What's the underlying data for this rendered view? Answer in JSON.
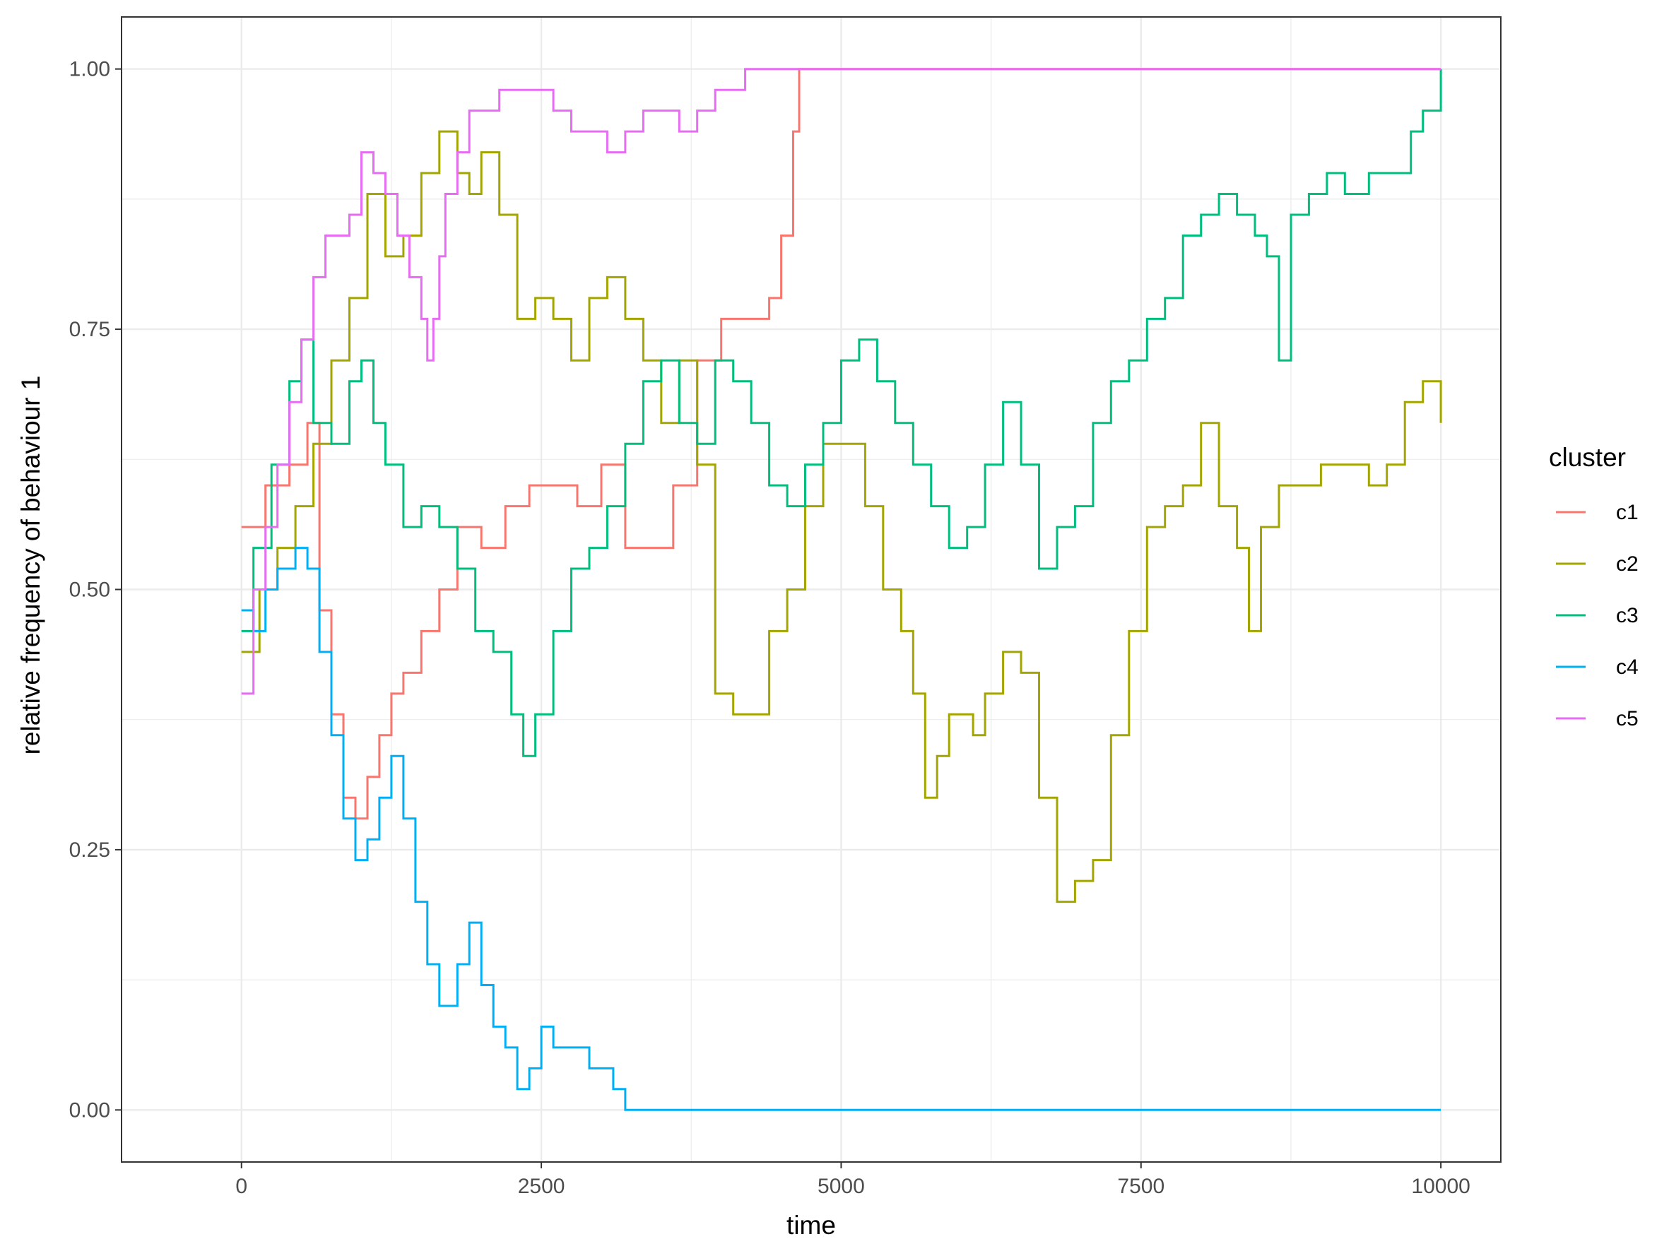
{
  "chart_data": {
    "type": "line",
    "title": "",
    "xlabel": "time",
    "ylabel": "relative frequency of behaviour 1",
    "xlim": [
      -1000,
      10500
    ],
    "ylim": [
      -0.05,
      1.05
    ],
    "xticks": [
      0,
      2500,
      5000,
      7500,
      10000
    ],
    "xtick_labels": [
      "0",
      "2500",
      "5000",
      "7500",
      "10000"
    ],
    "yticks": [
      0,
      0.25,
      0.5,
      0.75,
      1
    ],
    "ytick_labels": [
      "0.00",
      "0.25",
      "0.50",
      "0.75",
      "1.00"
    ],
    "grid": true,
    "legend": {
      "title": "cluster",
      "position": "right"
    },
    "series": [
      {
        "name": "c1",
        "color": "#F8766D",
        "x": [
          0,
          200,
          400,
          550,
          650,
          750,
          850,
          950,
          1050,
          1150,
          1250,
          1350,
          1500,
          1650,
          1800,
          2000,
          2200,
          2400,
          2600,
          2800,
          3000,
          3200,
          3400,
          3600,
          3800,
          4000,
          4200,
          4400,
          4500,
          4600,
          4650,
          4700,
          10000
        ],
        "y": [
          0.56,
          0.6,
          0.62,
          0.66,
          0.48,
          0.38,
          0.3,
          0.28,
          0.32,
          0.36,
          0.4,
          0.42,
          0.46,
          0.5,
          0.56,
          0.54,
          0.58,
          0.6,
          0.6,
          0.58,
          0.62,
          0.54,
          0.54,
          0.6,
          0.72,
          0.76,
          0.76,
          0.78,
          0.84,
          0.94,
          1.0,
          1.0,
          1.0
        ]
      },
      {
        "name": "c2",
        "color": "#A3A500",
        "x": [
          0,
          150,
          300,
          450,
          600,
          750,
          900,
          1050,
          1200,
          1350,
          1500,
          1650,
          1800,
          1900,
          2000,
          2150,
          2300,
          2450,
          2600,
          2750,
          2900,
          3050,
          3200,
          3350,
          3500,
          3650,
          3800,
          3950,
          4100,
          4250,
          4400,
          4550,
          4700,
          4850,
          5000,
          5200,
          5350,
          5500,
          5600,
          5700,
          5800,
          5900,
          6000,
          6100,
          6200,
          6350,
          6500,
          6650,
          6800,
          6950,
          7100,
          7250,
          7400,
          7550,
          7700,
          7850,
          8000,
          8150,
          8300,
          8400,
          8500,
          8650,
          8800,
          9000,
          9200,
          9400,
          9550,
          9700,
          9850,
          10000
        ],
        "y": [
          0.44,
          0.5,
          0.54,
          0.58,
          0.64,
          0.72,
          0.78,
          0.88,
          0.82,
          0.84,
          0.9,
          0.94,
          0.9,
          0.88,
          0.92,
          0.86,
          0.76,
          0.78,
          0.76,
          0.72,
          0.78,
          0.8,
          0.76,
          0.72,
          0.66,
          0.72,
          0.62,
          0.4,
          0.38,
          0.38,
          0.46,
          0.5,
          0.58,
          0.64,
          0.64,
          0.58,
          0.5,
          0.46,
          0.4,
          0.3,
          0.34,
          0.38,
          0.38,
          0.36,
          0.4,
          0.44,
          0.42,
          0.3,
          0.2,
          0.22,
          0.24,
          0.36,
          0.46,
          0.56,
          0.58,
          0.6,
          0.66,
          0.58,
          0.54,
          0.46,
          0.56,
          0.6,
          0.6,
          0.62,
          0.62,
          0.6,
          0.62,
          0.68,
          0.7,
          0.66
        ]
      },
      {
        "name": "c3",
        "color": "#00BF7D",
        "x": [
          0,
          100,
          250,
          400,
          500,
          600,
          750,
          900,
          1000,
          1100,
          1200,
          1350,
          1500,
          1650,
          1800,
          1950,
          2100,
          2250,
          2350,
          2450,
          2600,
          2750,
          2900,
          3050,
          3200,
          3350,
          3500,
          3650,
          3800,
          3950,
          4100,
          4250,
          4400,
          4550,
          4700,
          4850,
          5000,
          5150,
          5300,
          5450,
          5600,
          5750,
          5900,
          6050,
          6200,
          6350,
          6500,
          6650,
          6800,
          6950,
          7100,
          7250,
          7400,
          7550,
          7700,
          7850,
          8000,
          8150,
          8300,
          8450,
          8550,
          8650,
          8750,
          8900,
          9050,
          9200,
          9400,
          9600,
          9750,
          9850,
          10000
        ],
        "y": [
          0.46,
          0.54,
          0.62,
          0.7,
          0.74,
          0.66,
          0.64,
          0.7,
          0.72,
          0.66,
          0.62,
          0.56,
          0.58,
          0.56,
          0.52,
          0.46,
          0.44,
          0.38,
          0.34,
          0.38,
          0.46,
          0.52,
          0.54,
          0.58,
          0.64,
          0.7,
          0.72,
          0.66,
          0.64,
          0.72,
          0.7,
          0.66,
          0.6,
          0.58,
          0.62,
          0.66,
          0.72,
          0.74,
          0.7,
          0.66,
          0.62,
          0.58,
          0.54,
          0.56,
          0.62,
          0.68,
          0.62,
          0.52,
          0.56,
          0.58,
          0.66,
          0.7,
          0.72,
          0.76,
          0.78,
          0.84,
          0.86,
          0.88,
          0.86,
          0.84,
          0.82,
          0.72,
          0.86,
          0.88,
          0.9,
          0.88,
          0.9,
          0.9,
          0.94,
          0.96,
          1.0
        ]
      },
      {
        "name": "c4",
        "color": "#00B0F6",
        "x": [
          0,
          100,
          200,
          300,
          450,
          550,
          650,
          750,
          850,
          950,
          1050,
          1150,
          1250,
          1350,
          1450,
          1550,
          1650,
          1800,
          1900,
          2000,
          2100,
          2200,
          2300,
          2400,
          2500,
          2600,
          2700,
          2800,
          2900,
          3000,
          3100,
          3200,
          10000
        ],
        "y": [
          0.48,
          0.46,
          0.5,
          0.52,
          0.54,
          0.52,
          0.44,
          0.36,
          0.28,
          0.24,
          0.26,
          0.3,
          0.34,
          0.28,
          0.2,
          0.14,
          0.1,
          0.14,
          0.18,
          0.12,
          0.08,
          0.06,
          0.02,
          0.04,
          0.08,
          0.06,
          0.06,
          0.06,
          0.04,
          0.04,
          0.02,
          0.0,
          0.0
        ]
      },
      {
        "name": "c5",
        "color": "#E76BF3",
        "x": [
          0,
          100,
          200,
          300,
          400,
          500,
          600,
          700,
          800,
          900,
          1000,
          1100,
          1200,
          1300,
          1400,
          1500,
          1550,
          1600,
          1650,
          1700,
          1800,
          1900,
          2000,
          2150,
          2300,
          2450,
          2600,
          2750,
          2900,
          3050,
          3200,
          3350,
          3500,
          3650,
          3800,
          3950,
          4100,
          4200,
          10000
        ],
        "y": [
          0.4,
          0.5,
          0.56,
          0.62,
          0.68,
          0.74,
          0.8,
          0.84,
          0.84,
          0.86,
          0.92,
          0.9,
          0.88,
          0.84,
          0.8,
          0.76,
          0.72,
          0.76,
          0.82,
          0.88,
          0.92,
          0.96,
          0.96,
          0.98,
          0.98,
          0.98,
          0.96,
          0.94,
          0.94,
          0.92,
          0.94,
          0.96,
          0.96,
          0.94,
          0.96,
          0.98,
          0.98,
          1.0,
          1.0
        ]
      }
    ]
  }
}
